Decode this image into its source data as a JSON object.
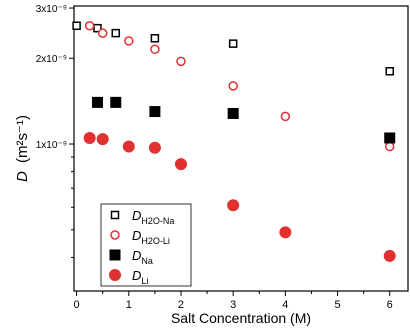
{
  "chart_data": {
    "type": "scatter",
    "xlabel": "Salt Concentration (M)",
    "ylabel_symbol": "D",
    "ylabel_units": "(m²s⁻¹)",
    "x_ticks": [
      "0",
      "1",
      "2",
      "3",
      "4",
      "5",
      "6"
    ],
    "y_ticks": [
      {
        "value": 1e-09,
        "label": "1x10⁻⁹"
      },
      {
        "value": 2e-09,
        "label": "2x10⁻⁹"
      },
      {
        "value": 3e-09,
        "label": "3x10⁻⁹"
      }
    ],
    "xlim": [
      -0.05,
      6.35
    ],
    "ylim": [
      3.05e-10,
      3.05e-09
    ],
    "y_scale": "log",
    "legend_placement": "bottom-left",
    "series": [
      {
        "symbol": "D",
        "subscript": "H2O-Na",
        "marker": "square-open",
        "color": "#000000",
        "x": [
          0,
          0.4,
          0.75,
          1.5,
          3,
          6
        ],
        "y": [
          2.6e-09,
          2.55e-09,
          2.45e-09,
          2.35e-09,
          2.25e-09,
          1.8e-09
        ]
      },
      {
        "symbol": "D",
        "subscript": "H2O-Li",
        "marker": "circle-open",
        "color": "#e03030",
        "x": [
          0.25,
          0.5,
          1,
          1.5,
          2,
          3,
          4,
          6
        ],
        "y": [
          2.6e-09,
          2.45e-09,
          2.3e-09,
          2.15e-09,
          1.95e-09,
          1.6e-09,
          1.25e-09,
          9.8e-10
        ]
      },
      {
        "symbol": "D",
        "subscript": "Na",
        "marker": "square-filled",
        "color": "#000000",
        "x": [
          0.4,
          0.75,
          1.5,
          3,
          6
        ],
        "y": [
          1.4e-09,
          1.4e-09,
          1.3e-09,
          1.28e-09,
          1.05e-09
        ]
      },
      {
        "symbol": "D",
        "subscript": "Li",
        "marker": "circle-filled",
        "color": "#e03030",
        "x": [
          0.25,
          0.5,
          1,
          1.5,
          2,
          3,
          4,
          6
        ],
        "y": [
          1.05e-09,
          1.04e-09,
          9.8e-10,
          9.7e-10,
          8.5e-10,
          6.1e-10,
          4.9e-10,
          4.05e-10
        ]
      }
    ]
  }
}
